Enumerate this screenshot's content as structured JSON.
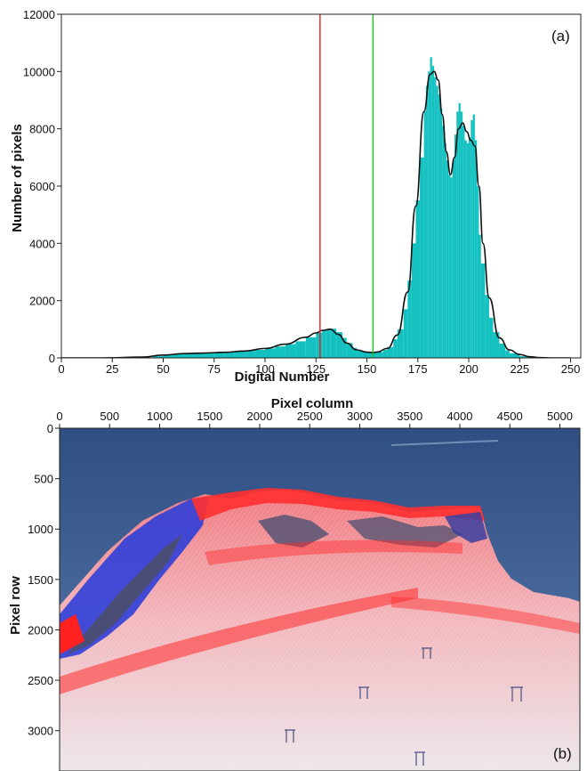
{
  "chart_data": [
    {
      "type": "bar",
      "panel_label": "(a)",
      "xlabel": "Digital Number",
      "ylabel": "Number of pixels",
      "xlim": [
        0,
        255
      ],
      "ylim": [
        0,
        12000
      ],
      "xticks": [
        0,
        25,
        50,
        75,
        100,
        125,
        150,
        175,
        200,
        225,
        250
      ],
      "yticks": [
        0,
        2000,
        4000,
        6000,
        8000,
        10000,
        12000
      ],
      "bar_color": "#14c1c1",
      "fit_color": "#111111",
      "thresholds": [
        {
          "x": 127,
          "color": "#e02020"
        },
        {
          "x": 153,
          "color": "#22bb22"
        }
      ],
      "histogram": {
        "x": [
          40,
          45,
          50,
          55,
          60,
          65,
          70,
          75,
          80,
          85,
          90,
          95,
          100,
          105,
          110,
          115,
          120,
          125,
          128,
          130,
          132,
          135,
          138,
          140,
          143,
          145,
          148,
          150,
          153,
          155,
          158,
          160,
          163,
          165,
          168,
          170,
          172,
          174,
          176,
          178,
          179,
          180,
          181,
          182,
          183,
          184,
          185,
          186,
          187,
          188,
          189,
          190,
          191,
          192,
          193,
          194,
          195,
          196,
          197,
          198,
          199,
          200,
          201,
          202,
          203,
          204,
          205,
          206,
          208,
          210,
          212,
          215,
          218,
          220,
          225,
          230,
          235,
          240
        ],
        "y": [
          20,
          60,
          110,
          140,
          155,
          165,
          175,
          185,
          200,
          220,
          245,
          280,
          330,
          400,
          480,
          580,
          720,
          880,
          950,
          1000,
          1020,
          900,
          700,
          520,
          350,
          260,
          210,
          190,
          190,
          210,
          280,
          380,
          650,
          1000,
          1700,
          2700,
          4000,
          5500,
          7000,
          8600,
          9500,
          10000,
          10500,
          10200,
          9800,
          9500,
          9200,
          8700,
          8100,
          7500,
          6900,
          6400,
          6300,
          6900,
          7800,
          8600,
          8900,
          8600,
          8100,
          7600,
          7500,
          7700,
          8300,
          8500,
          7600,
          6000,
          4300,
          3300,
          2200,
          1400,
          900,
          500,
          260,
          160,
          60,
          20,
          5,
          0
        ]
      },
      "fit": {
        "x": [
          0,
          20,
          40,
          50,
          60,
          70,
          80,
          90,
          100,
          110,
          120,
          125,
          128,
          132,
          136,
          140,
          145,
          150,
          153,
          155,
          160,
          165,
          170,
          174,
          178,
          181,
          183,
          185,
          187,
          189,
          191,
          193,
          195,
          197,
          199,
          201,
          203,
          205,
          207,
          210,
          215,
          220,
          225,
          230,
          235,
          240,
          250
        ],
        "y": [
          0,
          0,
          30,
          100,
          150,
          170,
          195,
          240,
          330,
          480,
          720,
          870,
          960,
          1000,
          820,
          520,
          280,
          200,
          190,
          205,
          330,
          800,
          2300,
          5300,
          8600,
          9900,
          10000,
          9700,
          8500,
          7200,
          6400,
          7000,
          8000,
          8200,
          7900,
          7600,
          7400,
          6000,
          4000,
          2100,
          700,
          280,
          120,
          40,
          10,
          0,
          0
        ]
      }
    },
    {
      "type": "heatmap",
      "panel_label": "(b)",
      "xlabel": "Pixel column",
      "ylabel": "Pixel row",
      "xlim": [
        0,
        5200
      ],
      "ylim": [
        3400,
        0
      ],
      "xticks": [
        0,
        500,
        1000,
        1500,
        2000,
        2500,
        3000,
        3500,
        4000,
        4500,
        5000
      ],
      "yticks": [
        0,
        500,
        1000,
        1500,
        2000,
        2500,
        3000
      ],
      "class_colors": {
        "sky": "#3d5f94",
        "snow": "#eed8dc",
        "class_red": "#ff2a2a",
        "class_blue": "#2b3bff",
        "rock": "#5a5e72"
      }
    }
  ]
}
